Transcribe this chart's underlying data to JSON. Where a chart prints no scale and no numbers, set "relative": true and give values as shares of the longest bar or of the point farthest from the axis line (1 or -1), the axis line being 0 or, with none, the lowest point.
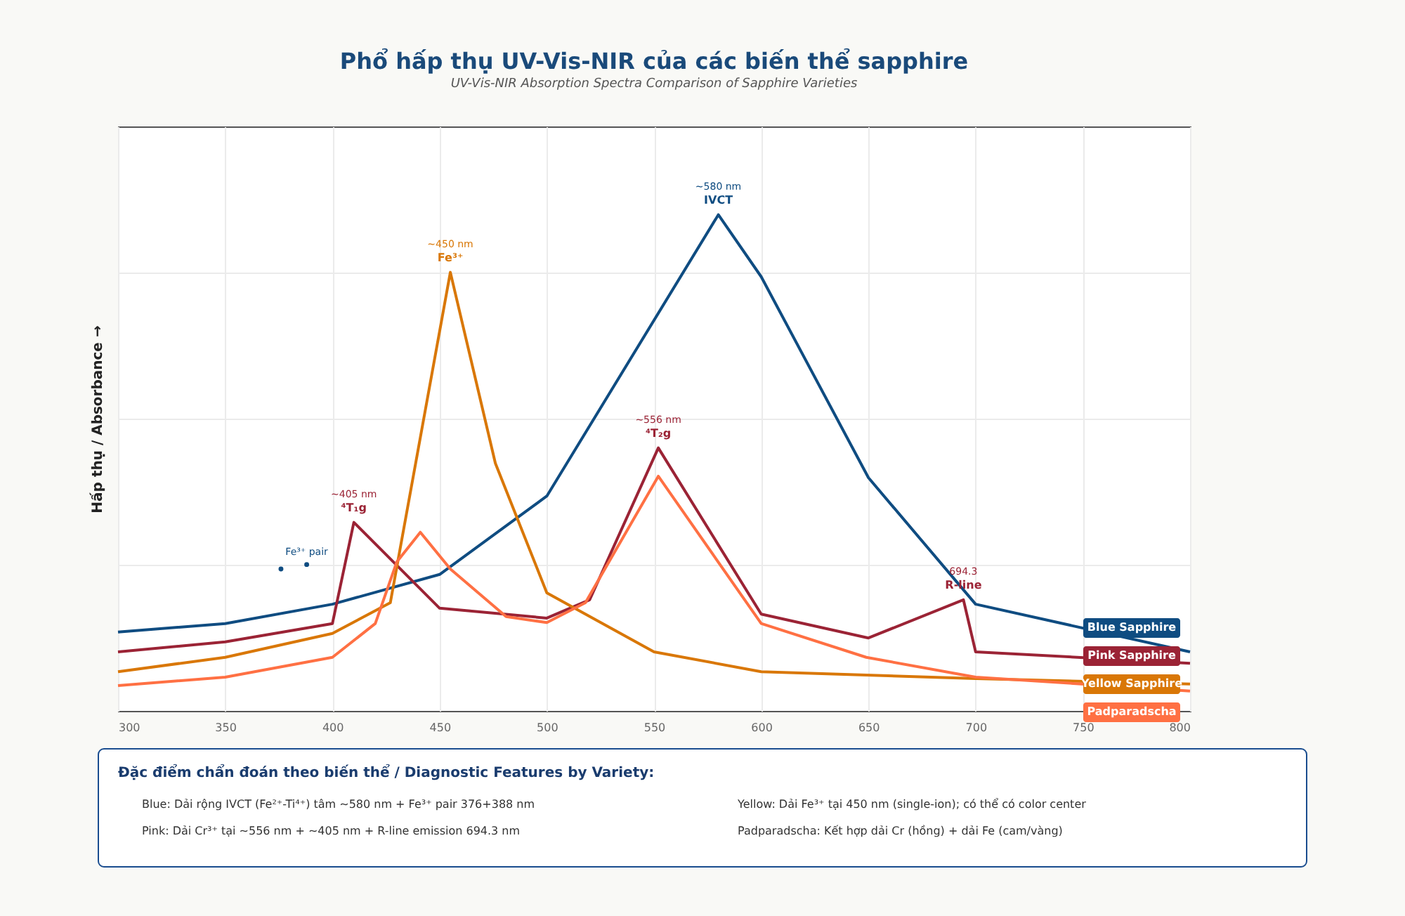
{
  "chart_data": {
    "type": "line",
    "title": "Phổ hấp thụ UV-Vis-NIR của các biến thể sapphire",
    "subtitle": "UV-Vis-NIR Absorption Spectra Comparison of Sapphire Varieties",
    "ylabel": "Hấp thụ / Absorbance →",
    "relative": true,
    "xlim": [
      300,
      800
    ],
    "xticks": [
      300,
      350,
      400,
      450,
      500,
      550,
      600,
      650,
      700,
      750,
      800
    ],
    "grid": true,
    "legend": false,
    "tick_labels": "x",
    "series": [
      {
        "name": "Blue Sapphire",
        "color": "#0f4c81",
        "x": [
          300,
          350,
          400,
          450,
          500,
          580,
          600,
          650,
          700,
          800
        ],
        "values": [
          0.159,
          0.176,
          0.215,
          0.275,
          0.433,
          1.0,
          0.875,
          0.47,
          0.215,
          0.119
        ]
      },
      {
        "name": "Pink Sapphire",
        "color": "#9b2335",
        "x": [
          300,
          350,
          400,
          410,
          450,
          500,
          520,
          552,
          600,
          650,
          694.3,
          700,
          800
        ],
        "values": [
          0.119,
          0.139,
          0.176,
          0.38,
          0.207,
          0.187,
          0.224,
          0.53,
          0.195,
          0.147,
          0.224,
          0.119,
          0.096
        ]
      },
      {
        "name": "Yellow Sapphire",
        "color": "#d97706",
        "x": [
          300,
          350,
          400,
          427,
          455,
          476,
          500,
          550,
          600,
          700,
          800
        ],
        "values": [
          0.079,
          0.108,
          0.156,
          0.218,
          0.884,
          0.499,
          0.238,
          0.119,
          0.079,
          0.065,
          0.054
        ]
      },
      {
        "name": "Padparadscha",
        "color": "#ff7043",
        "x": [
          300,
          350,
          400,
          420,
          430,
          441,
          455,
          481,
          500,
          518,
          552,
          600,
          649,
          700,
          800
        ],
        "values": [
          0.051,
          0.068,
          0.108,
          0.176,
          0.3,
          0.36,
          0.286,
          0.19,
          0.178,
          0.218,
          0.473,
          0.176,
          0.108,
          0.068,
          0.04
        ]
      },
      {
        "type": "scatter",
        "color": "#0f4c81",
        "marker": "circle",
        "x": [
          376,
          388
        ],
        "values": [
          0.286,
          0.295
        ]
      }
    ],
    "annotations": [
      {
        "text": "~580 nm\nIVCT",
        "x": 580,
        "y": 1.0
      },
      {
        "text": "~450 nm\nFe³⁺",
        "x": 455,
        "y": 0.884
      },
      {
        "text": "~405 nm\n⁴T₁g",
        "x": 410,
        "y": 0.38
      },
      {
        "text": "~556 nm\n⁴T₂g",
        "x": 552,
        "y": 0.53
      },
      {
        "text": "694.3\nR-line",
        "x": 694.3,
        "y": 0.224
      },
      {
        "text": "Fe³⁺ pair",
        "x": 388,
        "y": 0.295
      },
      "Đặc điểm chẩn đoán theo biến thể / Diagnostic Features by Variety:",
      "Blue: Dải rộng IVCT (Fe²⁺-Ti⁴⁺) tâm ~580 nm + Fe³⁺ pair 376+388 nm",
      "Pink: Dải Cr³⁺ tại ~556 nm + ~405 nm + R-line emission 694.3 nm",
      "Yellow: Dải Fe³⁺ tại 450 nm (single-ion); có thể có color center",
      "Padparadscha: Kết hợp dải Cr (hồng) + dải Fe (cam/vàng)"
    ]
  }
}
